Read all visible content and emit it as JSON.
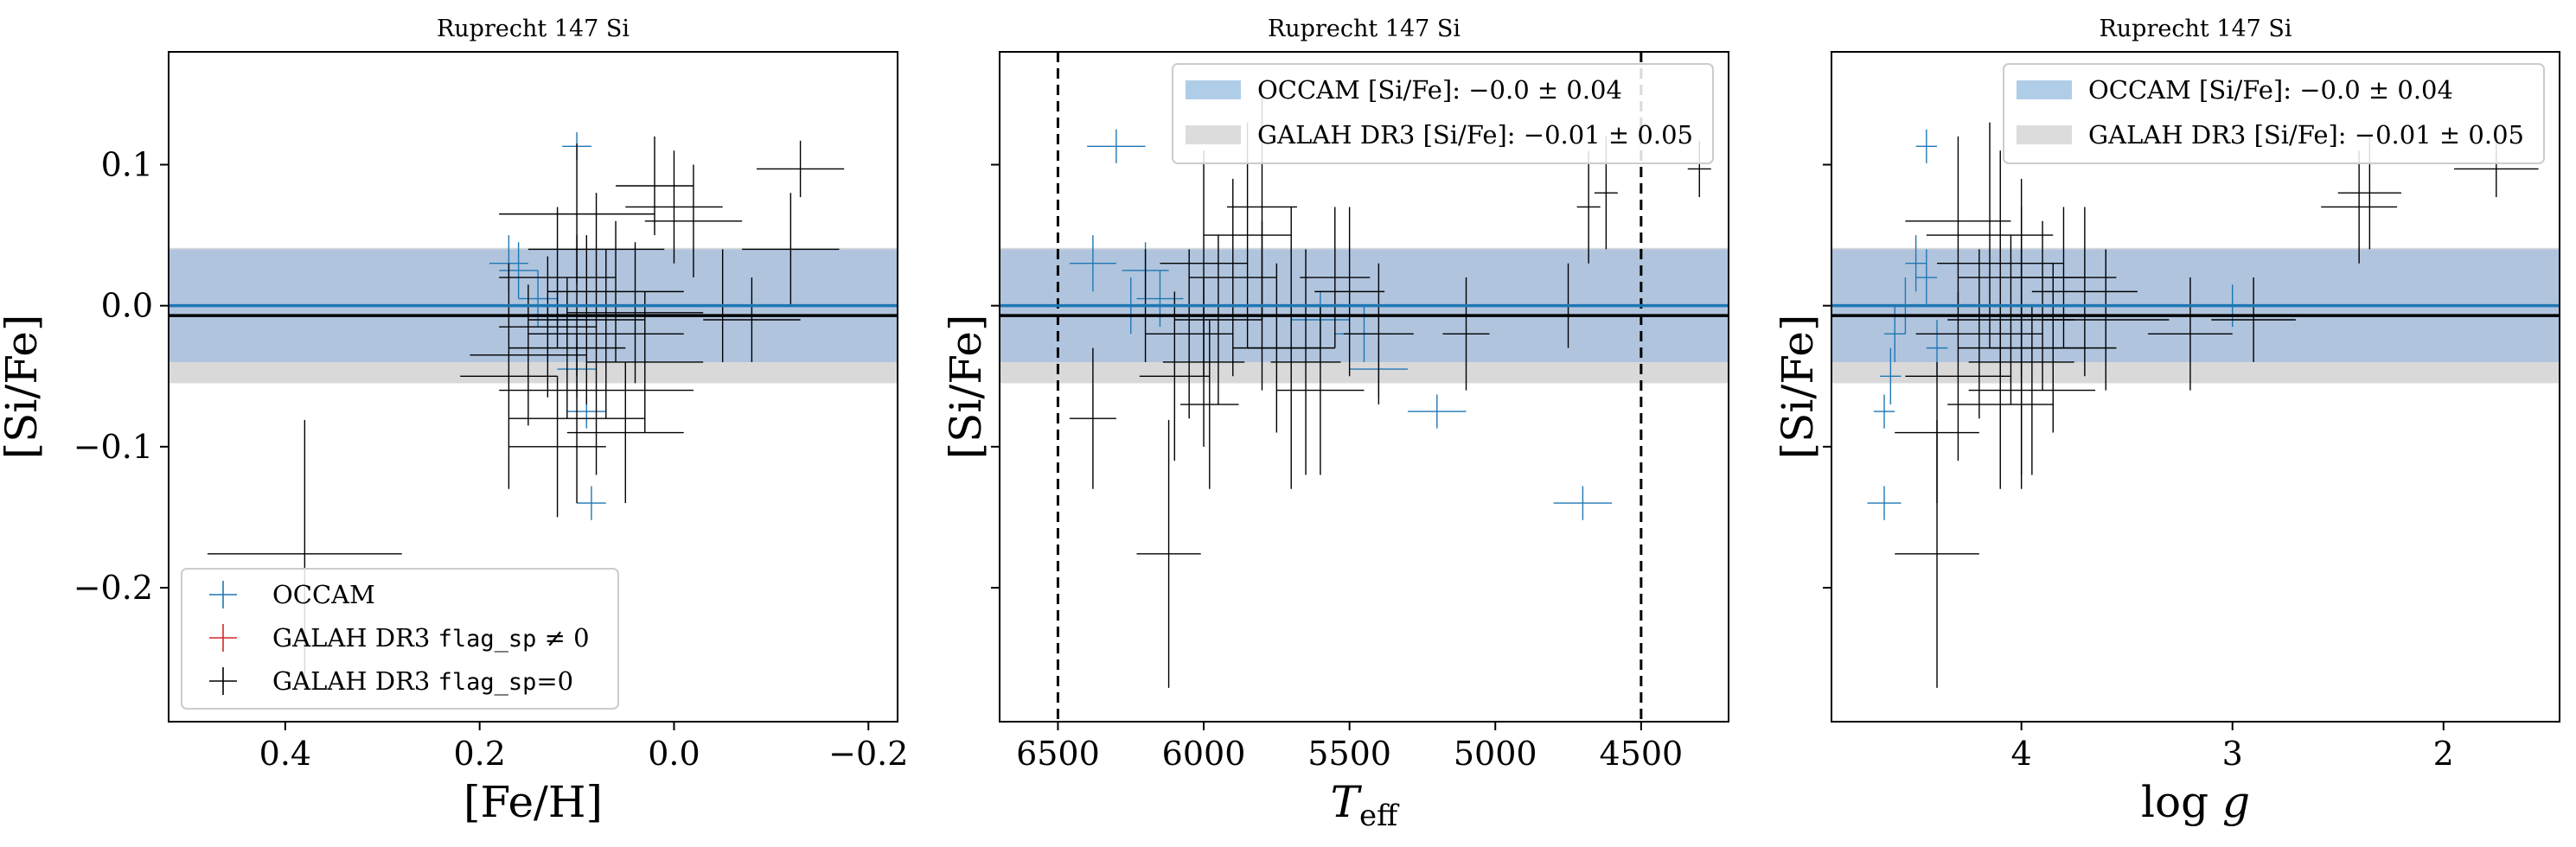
{
  "figure": {
    "background": "#ffffff",
    "colors": {
      "occam": "#1f77b4",
      "galah_flag_nonzero": "#d62728",
      "galah_flag_zero": "#000000",
      "occam_band": "#b0c4de",
      "galah_band": "#d9d9d9",
      "frame": "#000000"
    }
  },
  "chart_data": [
    {
      "type": "scatter",
      "title": "Ruprecht 147 Si",
      "xlabel": "[Fe/H]",
      "ylabel": "[Si/Fe]",
      "xlim": [
        0.52,
        -0.23
      ],
      "ylim": [
        -0.295,
        0.18
      ],
      "x_inverted": true,
      "xticks": [
        {
          "v": 0.4,
          "label": "0.4"
        },
        {
          "v": 0.2,
          "label": "0.2"
        },
        {
          "v": 0.0,
          "label": "0.0"
        },
        {
          "v": -0.2,
          "label": "−0.2"
        }
      ],
      "yticks": [
        {
          "v": 0.1,
          "label": "0.1"
        },
        {
          "v": 0.0,
          "label": "0.0"
        },
        {
          "v": -0.1,
          "label": "−0.1"
        },
        {
          "v": -0.2,
          "label": "−0.2"
        }
      ],
      "show_ytick_labels": true,
      "bands": {
        "occam": {
          "mean": 0.0,
          "halfwidth": 0.04
        },
        "galah": {
          "mean": -0.007,
          "halfwidth": 0.048
        }
      },
      "vlines": [],
      "legend": {
        "placement": "lower-left",
        "entries": [
          {
            "text": "OCCAM",
            "color": "#1f77b4"
          },
          {
            "text": "GALAH DR3 ",
            "mono": "flag_sp",
            "suffix": " ≠ 0",
            "color": "#d62728"
          },
          {
            "text": "GALAH DR3 ",
            "mono": "flag_sp",
            "suffix": "=0",
            "color": "#000000"
          }
        ]
      },
      "series": [
        {
          "name": "OCCAM",
          "color": "#1f77b4",
          "points": [
            {
              "x": 0.1,
              "y": 0.113,
              "xerr": 0.015,
              "yerr": 0.01
            },
            {
              "x": 0.17,
              "y": 0.03,
              "xerr": 0.02,
              "yerr": 0.02
            },
            {
              "x": 0.16,
              "y": 0.025,
              "xerr": 0.02,
              "yerr": 0.02
            },
            {
              "x": 0.14,
              "y": 0.005,
              "xerr": 0.02,
              "yerr": 0.02
            },
            {
              "x": 0.12,
              "y": 0.0,
              "xerr": 0.02,
              "yerr": 0.02
            },
            {
              "x": 0.11,
              "y": -0.01,
              "xerr": 0.02,
              "yerr": 0.02
            },
            {
              "x": 0.13,
              "y": -0.02,
              "xerr": 0.02,
              "yerr": 0.02
            },
            {
              "x": 0.1,
              "y": -0.045,
              "xerr": 0.02,
              "yerr": 0.02
            },
            {
              "x": 0.09,
              "y": -0.075,
              "xerr": 0.02,
              "yerr": 0.012
            },
            {
              "x": 0.085,
              "y": -0.14,
              "xerr": 0.015,
              "yerr": 0.012
            }
          ]
        },
        {
          "name": "GALAH DR3 flag_sp=0",
          "color": "#000000",
          "points": [
            {
              "x": 0.38,
              "y": -0.176,
              "xerr": 0.1,
              "yerr": 0.095
            },
            {
              "x": -0.13,
              "y": 0.097,
              "xerr": 0.045,
              "yerr": 0.02
            },
            {
              "x": -0.12,
              "y": 0.04,
              "xerr": 0.05,
              "yerr": 0.04
            },
            {
              "x": 0.0,
              "y": 0.07,
              "xerr": 0.05,
              "yerr": 0.04
            },
            {
              "x": -0.02,
              "y": 0.06,
              "xerr": 0.05,
              "yerr": 0.04
            },
            {
              "x": 0.02,
              "y": 0.085,
              "xerr": 0.04,
              "yerr": 0.035
            },
            {
              "x": 0.1,
              "y": 0.065,
              "xerr": 0.08,
              "yerr": 0.05
            },
            {
              "x": 0.08,
              "y": 0.04,
              "xerr": 0.07,
              "yerr": 0.04
            },
            {
              "x": 0.12,
              "y": 0.02,
              "xerr": 0.06,
              "yerr": 0.05
            },
            {
              "x": 0.06,
              "y": 0.01,
              "xerr": 0.07,
              "yerr": 0.05
            },
            {
              "x": 0.1,
              "y": 0.0,
              "xerr": 0.06,
              "yerr": 0.05
            },
            {
              "x": 0.04,
              "y": -0.005,
              "xerr": 0.07,
              "yerr": 0.05
            },
            {
              "x": 0.09,
              "y": -0.01,
              "xerr": 0.06,
              "yerr": 0.06
            },
            {
              "x": 0.13,
              "y": -0.015,
              "xerr": 0.05,
              "yerr": 0.05
            },
            {
              "x": 0.07,
              "y": -0.02,
              "xerr": 0.08,
              "yerr": 0.06
            },
            {
              "x": 0.11,
              "y": -0.03,
              "xerr": 0.06,
              "yerr": 0.05
            },
            {
              "x": 0.15,
              "y": -0.035,
              "xerr": 0.06,
              "yerr": 0.05
            },
            {
              "x": 0.03,
              "y": -0.04,
              "xerr": 0.06,
              "yerr": 0.05
            },
            {
              "x": 0.08,
              "y": -0.06,
              "xerr": 0.1,
              "yerr": 0.06
            },
            {
              "x": 0.17,
              "y": -0.05,
              "xerr": 0.05,
              "yerr": 0.08
            },
            {
              "x": 0.1,
              "y": -0.08,
              "xerr": 0.07,
              "yerr": 0.06
            },
            {
              "x": 0.12,
              "y": -0.1,
              "xerr": 0.05,
              "yerr": 0.05
            },
            {
              "x": -0.05,
              "y": 0.0,
              "xerr": 0.06,
              "yerr": 0.04
            },
            {
              "x": -0.08,
              "y": -0.01,
              "xerr": 0.05,
              "yerr": 0.03
            },
            {
              "x": 0.05,
              "y": -0.09,
              "xerr": 0.06,
              "yerr": 0.05
            }
          ]
        }
      ]
    },
    {
      "type": "scatter",
      "title": "Ruprecht 147 Si",
      "xlabel": "T_eff",
      "ylabel": "[Si/Fe]",
      "xlim": [
        6700,
        4200
      ],
      "ylim": [
        -0.295,
        0.18
      ],
      "x_inverted": true,
      "xticks": [
        {
          "v": 6500,
          "label": "6500"
        },
        {
          "v": 6000,
          "label": "6000"
        },
        {
          "v": 5500,
          "label": "5500"
        },
        {
          "v": 5000,
          "label": "5000"
        },
        {
          "v": 4500,
          "label": "4500"
        }
      ],
      "yticks": [
        {
          "v": 0.1,
          "label": ""
        },
        {
          "v": 0.0,
          "label": ""
        },
        {
          "v": -0.1,
          "label": ""
        },
        {
          "v": -0.2,
          "label": ""
        }
      ],
      "show_ytick_labels": false,
      "bands": {
        "occam": {
          "mean": 0.0,
          "halfwidth": 0.04
        },
        "galah": {
          "mean": -0.007,
          "halfwidth": 0.048
        }
      },
      "vlines": [
        6500,
        4500
      ],
      "legend": {
        "placement": "top-right",
        "entries": [
          {
            "text": "OCCAM [Si/Fe]: −0.0 ± 0.04",
            "color": "#b0cde8",
            "patch": true
          },
          {
            "text": "GALAH DR3 [Si/Fe]: −0.01 ± 0.05",
            "color": "#dcdcdc",
            "patch": true
          }
        ]
      },
      "series": [
        {
          "name": "OCCAM",
          "color": "#1f77b4",
          "points": [
            {
              "x": 6300,
              "y": 0.113,
              "xerr": 100,
              "yerr": 0.012
            },
            {
              "x": 6380,
              "y": 0.03,
              "xerr": 80,
              "yerr": 0.02
            },
            {
              "x": 6200,
              "y": 0.025,
              "xerr": 80,
              "yerr": 0.02
            },
            {
              "x": 6150,
              "y": 0.005,
              "xerr": 80,
              "yerr": 0.02
            },
            {
              "x": 6250,
              "y": 0.0,
              "xerr": 80,
              "yerr": 0.02
            },
            {
              "x": 5600,
              "y": -0.01,
              "xerr": 100,
              "yerr": 0.02
            },
            {
              "x": 5450,
              "y": -0.02,
              "xerr": 100,
              "yerr": 0.02
            },
            {
              "x": 5400,
              "y": -0.045,
              "xerr": 100,
              "yerr": 0.02
            },
            {
              "x": 5200,
              "y": -0.075,
              "xerr": 100,
              "yerr": 0.012
            },
            {
              "x": 4700,
              "y": -0.14,
              "xerr": 100,
              "yerr": 0.012
            }
          ]
        },
        {
          "name": "GALAH DR3 flag_sp=0",
          "color": "#000000",
          "points": [
            {
              "x": 4300,
              "y": 0.097,
              "xerr": 40,
              "yerr": 0.02
            },
            {
              "x": 4680,
              "y": 0.07,
              "xerr": 40,
              "yerr": 0.04
            },
            {
              "x": 4620,
              "y": 0.08,
              "xerr": 40,
              "yerr": 0.04
            },
            {
              "x": 4750,
              "y": 0.0,
              "xerr": 60,
              "yerr": 0.03
            },
            {
              "x": 5100,
              "y": -0.02,
              "xerr": 80,
              "yerr": 0.04
            },
            {
              "x": 6120,
              "y": -0.176,
              "xerr": 110,
              "yerr": 0.095
            },
            {
              "x": 6380,
              "y": -0.08,
              "xerr": 80,
              "yerr": 0.05
            },
            {
              "x": 6000,
              "y": 0.03,
              "xerr": 150,
              "yerr": 0.08
            },
            {
              "x": 5900,
              "y": 0.02,
              "xerr": 150,
              "yerr": 0.07
            },
            {
              "x": 5800,
              "y": 0.0,
              "xerr": 150,
              "yerr": 0.06
            },
            {
              "x": 5950,
              "y": -0.01,
              "xerr": 150,
              "yerr": 0.06
            },
            {
              "x": 6050,
              "y": -0.02,
              "xerr": 150,
              "yerr": 0.06
            },
            {
              "x": 5750,
              "y": -0.03,
              "xerr": 150,
              "yerr": 0.06
            },
            {
              "x": 5650,
              "y": -0.04,
              "xerr": 120,
              "yerr": 0.08
            },
            {
              "x": 5500,
              "y": 0.01,
              "xerr": 120,
              "yerr": 0.06
            },
            {
              "x": 5850,
              "y": 0.05,
              "xerr": 150,
              "yerr": 0.08
            },
            {
              "x": 6100,
              "y": -0.05,
              "xerr": 120,
              "yerr": 0.06
            },
            {
              "x": 5600,
              "y": -0.06,
              "xerr": 150,
              "yerr": 0.06
            },
            {
              "x": 5700,
              "y": -0.03,
              "xerr": 150,
              "yerr": 0.1
            },
            {
              "x": 5550,
              "y": 0.02,
              "xerr": 120,
              "yerr": 0.05
            },
            {
              "x": 6200,
              "y": 0.0,
              "xerr": 100,
              "yerr": 0.04
            },
            {
              "x": 5980,
              "y": -0.07,
              "xerr": 100,
              "yerr": 0.06
            },
            {
              "x": 5400,
              "y": -0.02,
              "xerr": 120,
              "yerr": 0.05
            },
            {
              "x": 6000,
              "y": -0.04,
              "xerr": 140,
              "yerr": 0.06
            },
            {
              "x": 5800,
              "y": 0.07,
              "xerr": 120,
              "yerr": 0.08
            }
          ]
        }
      ]
    },
    {
      "type": "scatter",
      "title": "Ruprecht 147 Si",
      "xlabel": "log g",
      "ylabel": "[Si/Fe]",
      "xlim": [
        4.9,
        1.45
      ],
      "ylim": [
        -0.295,
        0.18
      ],
      "x_inverted": true,
      "xticks": [
        {
          "v": 4,
          "label": "4"
        },
        {
          "v": 3,
          "label": "3"
        },
        {
          "v": 2,
          "label": "2"
        }
      ],
      "yticks": [
        {
          "v": 0.1,
          "label": ""
        },
        {
          "v": 0.0,
          "label": ""
        },
        {
          "v": -0.1,
          "label": ""
        },
        {
          "v": -0.2,
          "label": ""
        }
      ],
      "show_ytick_labels": false,
      "bands": {
        "occam": {
          "mean": 0.0,
          "halfwidth": 0.04
        },
        "galah": {
          "mean": -0.007,
          "halfwidth": 0.048
        }
      },
      "vlines": [],
      "legend": {
        "placement": "top-right",
        "entries": [
          {
            "text": "OCCAM [Si/Fe]: −0.0 ± 0.04",
            "color": "#b0cde8",
            "patch": true
          },
          {
            "text": "GALAH DR3 [Si/Fe]: −0.01 ± 0.05",
            "color": "#dcdcdc",
            "patch": true
          }
        ]
      },
      "series": [
        {
          "name": "OCCAM",
          "color": "#1f77b4",
          "points": [
            {
              "x": 4.45,
              "y": 0.113,
              "xerr": 0.05,
              "yerr": 0.012
            },
            {
              "x": 4.5,
              "y": 0.03,
              "xerr": 0.05,
              "yerr": 0.02
            },
            {
              "x": 4.45,
              "y": 0.02,
              "xerr": 0.05,
              "yerr": 0.02
            },
            {
              "x": 4.55,
              "y": 0.0,
              "xerr": 0.05,
              "yerr": 0.02
            },
            {
              "x": 4.6,
              "y": -0.02,
              "xerr": 0.05,
              "yerr": 0.02
            },
            {
              "x": 4.4,
              "y": -0.03,
              "xerr": 0.05,
              "yerr": 0.02
            },
            {
              "x": 4.62,
              "y": -0.05,
              "xerr": 0.05,
              "yerr": 0.02
            },
            {
              "x": 4.65,
              "y": -0.075,
              "xerr": 0.05,
              "yerr": 0.012
            },
            {
              "x": 4.65,
              "y": -0.14,
              "xerr": 0.08,
              "yerr": 0.012
            },
            {
              "x": 3.0,
              "y": 0.0,
              "xerr": 0.08,
              "yerr": 0.015
            }
          ]
        },
        {
          "name": "GALAH DR3 flag_sp=0",
          "color": "#000000",
          "points": [
            {
              "x": 1.75,
              "y": 0.097,
              "xerr": 0.2,
              "yerr": 0.02
            },
            {
              "x": 2.4,
              "y": 0.07,
              "xerr": 0.18,
              "yerr": 0.04
            },
            {
              "x": 2.35,
              "y": 0.08,
              "xerr": 0.15,
              "yerr": 0.04
            },
            {
              "x": 2.9,
              "y": -0.01,
              "xerr": 0.2,
              "yerr": 0.03
            },
            {
              "x": 3.2,
              "y": -0.02,
              "xerr": 0.2,
              "yerr": 0.04
            },
            {
              "x": 4.4,
              "y": -0.176,
              "xerr": 0.2,
              "yerr": 0.095
            },
            {
              "x": 4.1,
              "y": 0.03,
              "xerr": 0.3,
              "yerr": 0.08
            },
            {
              "x": 4.0,
              "y": 0.02,
              "xerr": 0.3,
              "yerr": 0.07
            },
            {
              "x": 3.9,
              "y": 0.0,
              "xerr": 0.3,
              "yerr": 0.06
            },
            {
              "x": 4.05,
              "y": -0.01,
              "xerr": 0.3,
              "yerr": 0.06
            },
            {
              "x": 4.2,
              "y": -0.02,
              "xerr": 0.3,
              "yerr": 0.06
            },
            {
              "x": 3.85,
              "y": -0.03,
              "xerr": 0.3,
              "yerr": 0.06
            },
            {
              "x": 4.0,
              "y": -0.04,
              "xerr": 0.25,
              "yerr": 0.08
            },
            {
              "x": 3.7,
              "y": 0.01,
              "xerr": 0.25,
              "yerr": 0.06
            },
            {
              "x": 4.15,
              "y": 0.05,
              "xerr": 0.3,
              "yerr": 0.08
            },
            {
              "x": 4.3,
              "y": -0.05,
              "xerr": 0.25,
              "yerr": 0.06
            },
            {
              "x": 3.95,
              "y": -0.06,
              "xerr": 0.3,
              "yerr": 0.06
            },
            {
              "x": 4.0,
              "y": -0.03,
              "xerr": 0.3,
              "yerr": 0.1
            },
            {
              "x": 3.8,
              "y": 0.02,
              "xerr": 0.25,
              "yerr": 0.05
            },
            {
              "x": 4.1,
              "y": -0.07,
              "xerr": 0.25,
              "yerr": 0.06
            },
            {
              "x": 4.3,
              "y": 0.06,
              "xerr": 0.25,
              "yerr": 0.06
            },
            {
              "x": 3.6,
              "y": -0.01,
              "xerr": 0.3,
              "yerr": 0.05
            },
            {
              "x": 4.4,
              "y": -0.09,
              "xerr": 0.2,
              "yerr": 0.05
            }
          ]
        }
      ]
    }
  ]
}
